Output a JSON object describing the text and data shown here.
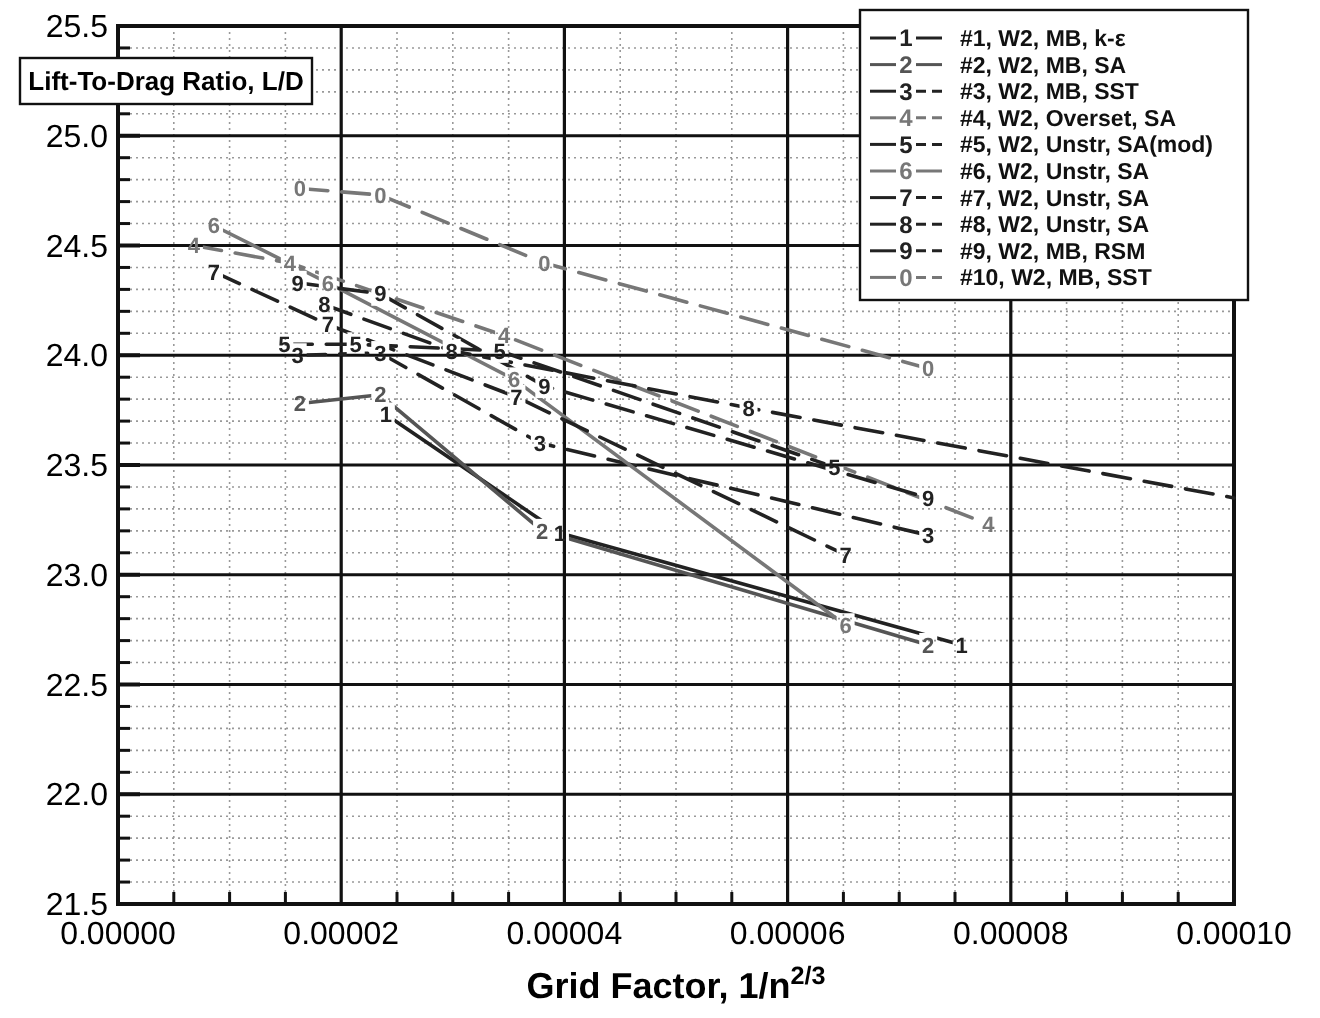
{
  "chart_data": {
    "type": "line",
    "ylabel": "Lift-To-Drag Ratio, L/D",
    "xlabel": "Grid Factor, 1/n$^{2/3}$",
    "xlim": [
      0,
      0.0001
    ],
    "ylim": [
      21.5,
      25.5
    ],
    "xticks": [
      {
        "value": 0,
        "label": "0.00000"
      },
      {
        "value": 2e-05,
        "label": "0.00002"
      },
      {
        "value": 4e-05,
        "label": "0.00004"
      },
      {
        "value": 6e-05,
        "label": "0.00006"
      },
      {
        "value": 8e-05,
        "label": "0.00008"
      },
      {
        "value": 0.0001,
        "label": "0.00010"
      }
    ],
    "yticks": [
      {
        "value": 21.5,
        "label": "21.5"
      },
      {
        "value": 22,
        "label": "22.0"
      },
      {
        "value": 22.5,
        "label": "22.5"
      },
      {
        "value": 23,
        "label": "23.0"
      },
      {
        "value": 23.5,
        "label": "23.5"
      },
      {
        "value": 24,
        "label": "24.0"
      },
      {
        "value": 24.5,
        "label": "24.5"
      },
      {
        "value": 25,
        "label": "25.0"
      },
      {
        "value": 25.5,
        "label": "25.5"
      }
    ],
    "grid": true,
    "legend": "top right",
    "series": [
      {
        "name": "#1, W2, MB, k-ε",
        "color": "#222222",
        "line_style": "solid",
        "x": [
          2.4e-05,
          3.96e-05,
          7.56e-05
        ],
        "values": [
          23.73,
          23.19,
          22.68
        ]
      },
      {
        "name": "#2, W2, MB, SA",
        "color": "#555555",
        "line_style": "solid",
        "x": [
          1.63e-05,
          2.35e-05,
          3.8e-05,
          7.26e-05
        ],
        "values": [
          23.78,
          23.82,
          23.2,
          22.68
        ]
      },
      {
        "name": "#3, W2, MB, SST",
        "color": "#222222",
        "line_style": "dashed",
        "x": [
          1.61e-05,
          2.35e-05,
          3.78e-05,
          7.26e-05
        ],
        "values": [
          24.0,
          24.01,
          23.6,
          23.18
        ]
      },
      {
        "name": "#4, W2, Overset, SA",
        "color": "#777777",
        "line_style": "dashed",
        "x": [
          6.8e-06,
          1.54e-05,
          3.46e-05,
          7.8e-05
        ],
        "values": [
          24.5,
          24.42,
          24.09,
          23.23
        ]
      },
      {
        "name": "#5, W2, Unstr, SA(mod)",
        "color": "#222222",
        "line_style": "dashed",
        "x": [
          1.49e-05,
          2.13e-05,
          3.42e-05,
          6.42e-05
        ],
        "values": [
          24.05,
          24.05,
          24.02,
          23.49
        ]
      },
      {
        "name": "#6, W2, Unstr, SA",
        "color": "#777777",
        "line_style": "solid",
        "x": [
          8.6e-06,
          1.88e-05,
          3.55e-05,
          6.52e-05
        ],
        "values": [
          24.59,
          24.33,
          23.89,
          22.77
        ]
      },
      {
        "name": "#7, W2, Unstr, SA",
        "color": "#222222",
        "line_style": "dashed",
        "x": [
          8.6e-06,
          1.88e-05,
          3.57e-05,
          6.52e-05
        ],
        "values": [
          24.38,
          24.14,
          23.81,
          23.09
        ]
      },
      {
        "name": "#8, W2, Unstr, SA",
        "color": "#222222",
        "line_style": "dashed",
        "x": [
          1.85e-05,
          2.99e-05,
          5.65e-05,
          0.0001
        ],
        "values": [
          24.23,
          24.02,
          23.76,
          23.35
        ]
      },
      {
        "name": "#9, W2, MB, RSM",
        "color": "#222222",
        "line_style": "dashed",
        "x": [
          1.61e-05,
          2.35e-05,
          3.82e-05,
          7.26e-05
        ],
        "values": [
          24.33,
          24.28,
          23.86,
          23.35
        ]
      },
      {
        "name": "#10, W2, MB, SST",
        "color": "#777777",
        "line_style": "dashed",
        "x": [
          1.63e-05,
          2.35e-05,
          3.82e-05,
          7.26e-05
        ],
        "values": [
          24.76,
          24.73,
          24.42,
          23.94
        ]
      }
    ],
    "annotations": [
      {
        "text": "1",
        "x": 2.4e-05,
        "y": 23.73
      },
      {
        "text": "1",
        "x": 3.96e-05,
        "y": 23.19
      },
      {
        "text": "1",
        "x": 7.56e-05,
        "y": 22.68
      },
      {
        "text": "2",
        "x": 1.63e-05,
        "y": 23.78
      },
      {
        "text": "2",
        "x": 2.35e-05,
        "y": 23.82
      },
      {
        "text": "2",
        "x": 3.8e-05,
        "y": 23.2
      },
      {
        "text": "2",
        "x": 7.26e-05,
        "y": 22.68
      },
      {
        "text": "3",
        "x": 1.61e-05,
        "y": 24.0
      },
      {
        "text": "3",
        "x": 2.35e-05,
        "y": 24.01
      },
      {
        "text": "3",
        "x": 3.78e-05,
        "y": 23.6
      },
      {
        "text": "3",
        "x": 7.26e-05,
        "y": 23.18
      },
      {
        "text": "4",
        "x": 6.8e-06,
        "y": 24.5
      },
      {
        "text": "4",
        "x": 1.54e-05,
        "y": 24.42
      },
      {
        "text": "4",
        "x": 3.46e-05,
        "y": 24.09
      },
      {
        "text": "4",
        "x": 7.8e-05,
        "y": 23.23
      },
      {
        "text": "5",
        "x": 1.49e-05,
        "y": 24.05
      },
      {
        "text": "5",
        "x": 2.13e-05,
        "y": 24.05
      },
      {
        "text": "5",
        "x": 3.42e-05,
        "y": 24.02
      },
      {
        "text": "5",
        "x": 6.42e-05,
        "y": 23.49
      },
      {
        "text": "6",
        "x": 8.6e-06,
        "y": 24.59
      },
      {
        "text": "6",
        "x": 1.88e-05,
        "y": 24.33
      },
      {
        "text": "6",
        "x": 3.55e-05,
        "y": 23.89
      },
      {
        "text": "6",
        "x": 6.52e-05,
        "y": 22.77
      },
      {
        "text": "7",
        "x": 8.6e-06,
        "y": 24.38
      },
      {
        "text": "7",
        "x": 1.88e-05,
        "y": 24.14
      },
      {
        "text": "7",
        "x": 3.57e-05,
        "y": 23.81
      },
      {
        "text": "7",
        "x": 6.52e-05,
        "y": 23.09
      },
      {
        "text": "8",
        "x": 1.85e-05,
        "y": 24.23
      },
      {
        "text": "8",
        "x": 2.99e-05,
        "y": 24.02
      },
      {
        "text": "8",
        "x": 5.65e-05,
        "y": 23.76
      },
      {
        "text": "9",
        "x": 1.61e-05,
        "y": 24.33
      },
      {
        "text": "9",
        "x": 2.35e-05,
        "y": 24.28
      },
      {
        "text": "9",
        "x": 3.82e-05,
        "y": 23.86
      },
      {
        "text": "9",
        "x": 7.26e-05,
        "y": 23.35
      },
      {
        "text": "0",
        "x": 1.63e-05,
        "y": 24.76
      },
      {
        "text": "0",
        "x": 2.35e-05,
        "y": 24.73
      },
      {
        "text": "0",
        "x": 3.82e-05,
        "y": 24.42
      },
      {
        "text": "0",
        "x": 7.26e-05,
        "y": 23.94
      }
    ]
  }
}
